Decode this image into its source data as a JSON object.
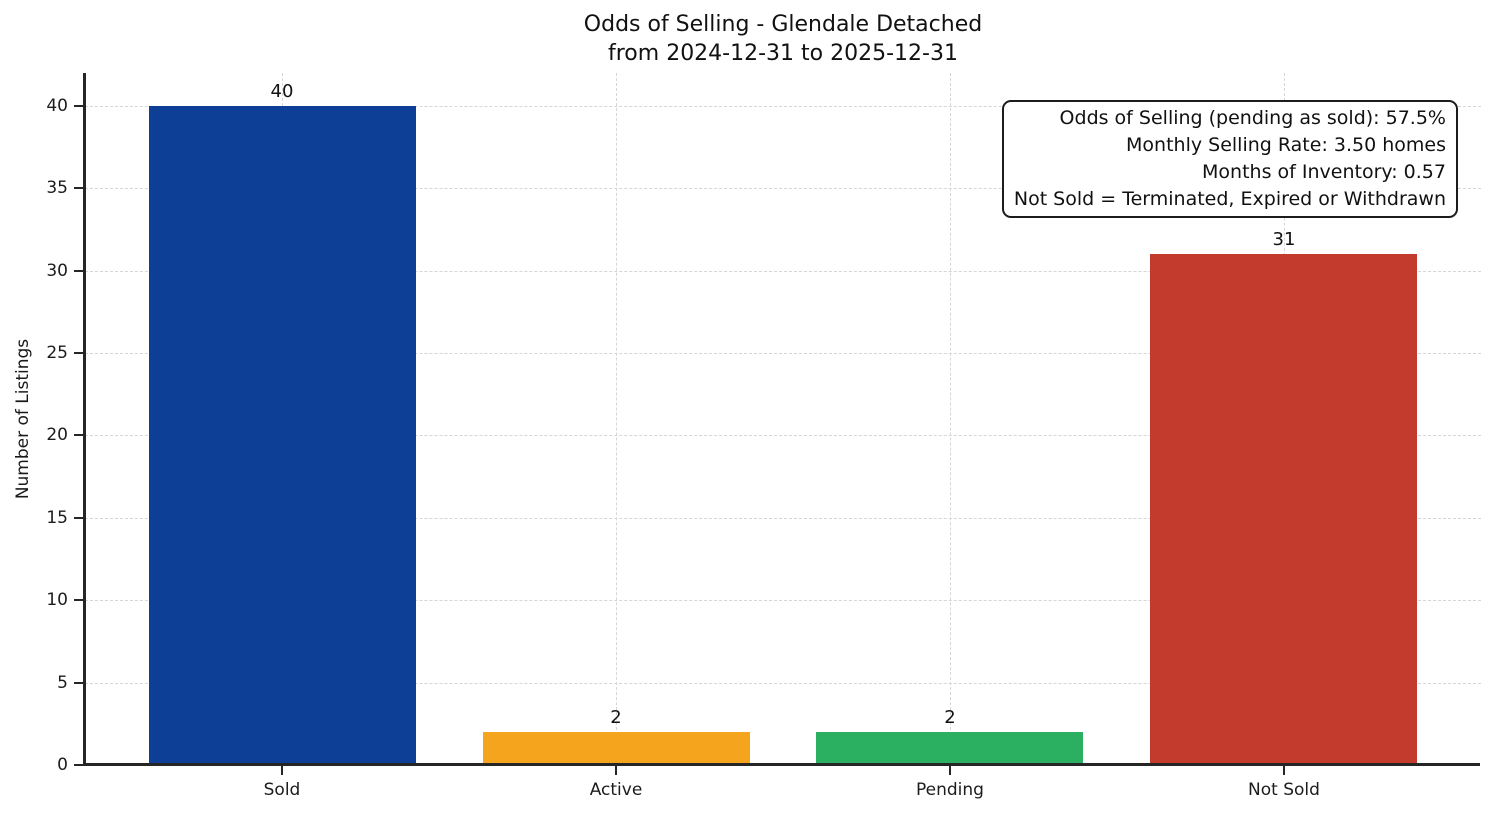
{
  "chart_data": {
    "type": "bar",
    "title": "Odds of Selling - Glendale Detached",
    "subtitle": "from 2024-12-31 to 2025-12-31",
    "categories": [
      "Sold",
      "Active",
      "Pending",
      "Not Sold"
    ],
    "values": [
      40,
      2,
      2,
      31
    ],
    "value_labels": [
      "40",
      "2",
      "2",
      "31"
    ],
    "bar_colors": [
      "#0d3f96",
      "#f5a41e",
      "#2bb062",
      "#c33b2c"
    ],
    "xlabel": "",
    "ylabel": "Number of Listings",
    "ylim": [
      0,
      42
    ],
    "yticks": [
      0,
      5,
      10,
      15,
      20,
      25,
      30,
      35,
      40
    ],
    "grid": "dashed, both axes",
    "legend": "none",
    "annotation_box": {
      "position": "top-right",
      "lines": [
        "Odds of Selling (pending as sold): 57.5%",
        "Monthly Selling Rate: 3.50 homes",
        "Months of Inventory: 0.57",
        "Not Sold = Terminated, Expired or Withdrawn"
      ]
    },
    "colors": {
      "text": "#111111",
      "spine": "#262626",
      "grid": "#d6d6d6",
      "background": "#ffffff"
    }
  }
}
